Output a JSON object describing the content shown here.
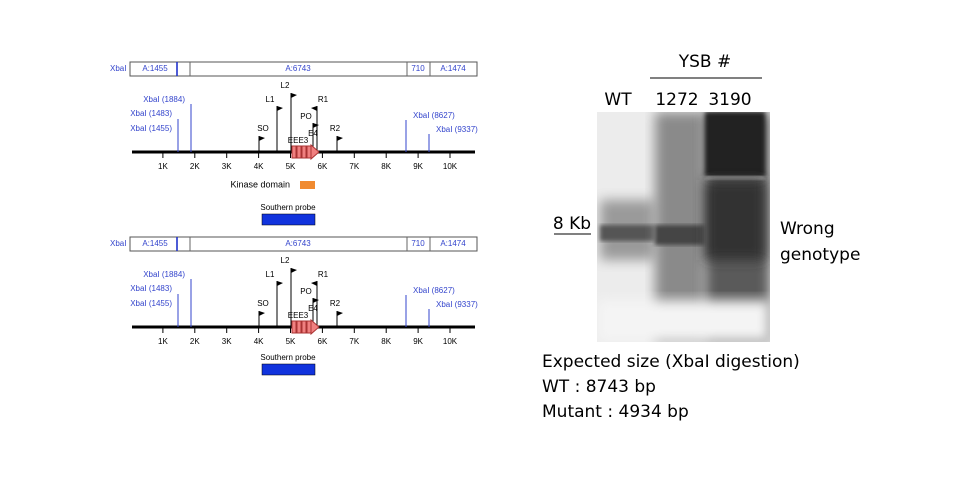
{
  "maps": [
    {
      "left_label": "XbaI",
      "segments": [
        "A:1455",
        "A:6743",
        "710",
        "A:1474"
      ],
      "sites": [
        "XbaI (1884)",
        "XbaI (1483)",
        "XbaI (1455)",
        "XbaI (8627)",
        "XbaI (9337)"
      ],
      "primers": [
        "L2",
        "L1",
        "SO",
        "PO",
        "R1",
        "R2"
      ],
      "exons": [
        "EEE3",
        "E4"
      ],
      "axis_ticks": [
        "1K",
        "2K",
        "3K",
        "4K",
        "5K",
        "6K",
        "7K",
        "8K",
        "9K",
        "10K"
      ],
      "domain": "Kinase domain",
      "probe": "Southern probe"
    },
    {
      "left_label": "XbaI",
      "segments": [
        "A:1455",
        "A:6743",
        "710",
        "A:1474"
      ],
      "sites": [
        "XbaI (1884)",
        "XbaI (1483)",
        "XbaI (1455)",
        "XbaI (8627)",
        "XbaI (9337)"
      ],
      "primers": [
        "L2",
        "L1",
        "SO",
        "PO",
        "R1",
        "R2"
      ],
      "exons": [
        "EEE3",
        "E4"
      ],
      "axis_ticks": [
        "1K",
        "2K",
        "3K",
        "4K",
        "5K",
        "6K",
        "7K",
        "8K",
        "9K",
        "10K"
      ],
      "probe": "Southern probe"
    }
  ],
  "blot": {
    "group_label": "YSB #",
    "lanes": [
      "WT",
      "1272",
      "3190"
    ],
    "marker": "8 Kb",
    "annotation": [
      "Wrong",
      "genotype"
    ]
  },
  "caption": [
    "Expected size (XbaI digestion)",
    "WT : 8743 bp",
    "Mutant : 4934 bp"
  ]
}
